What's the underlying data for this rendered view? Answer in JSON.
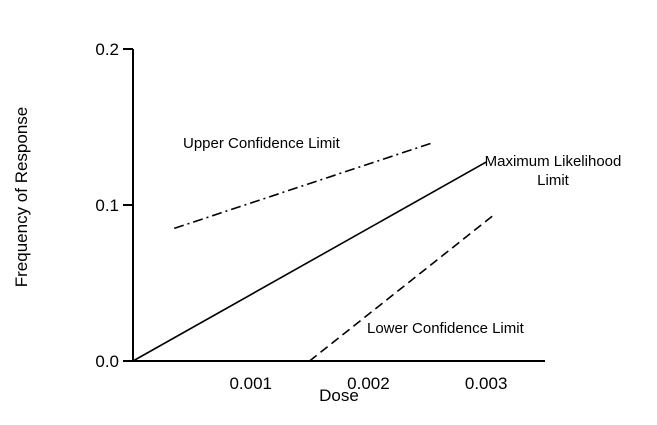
{
  "chart_data": {
    "type": "line",
    "title": "",
    "xlabel": "Dose",
    "ylabel": "Frequency of Response",
    "xlim": [
      0,
      0.0035
    ],
    "ylim": [
      0,
      0.2
    ],
    "x_ticks": [
      {
        "value": 0.001,
        "label": "0.001"
      },
      {
        "value": 0.002,
        "label": "0.002"
      },
      {
        "value": 0.003,
        "label": "0.003"
      }
    ],
    "y_ticks": [
      {
        "value": 0.0,
        "label": "0.0"
      },
      {
        "value": 0.1,
        "label": "0.1"
      },
      {
        "value": 0.2,
        "label": "0.2"
      }
    ],
    "grid": false,
    "legend": "none",
    "series": [
      {
        "name": "Upper Confidence Limit",
        "line_style": "dash-dot",
        "color": "#000000",
        "points": [
          {
            "x": 0.00035,
            "y": 0.085
          },
          {
            "x": 0.00255,
            "y": 0.14
          }
        ]
      },
      {
        "name": "Maximum Likelihood Limit",
        "line_style": "solid",
        "color": "#000000",
        "points": [
          {
            "x": 0.0,
            "y": 0.0
          },
          {
            "x": 0.003,
            "y": 0.1275
          }
        ]
      },
      {
        "name": "Lower Confidence Limit",
        "line_style": "dashed",
        "color": "#000000",
        "points": [
          {
            "x": 0.0015,
            "y": 0.0
          },
          {
            "x": 0.00308,
            "y": 0.0945
          }
        ]
      }
    ],
    "annotations": [
      {
        "id": "upper",
        "lines": [
          "Upper Confidence Limit"
        ]
      },
      {
        "id": "mle",
        "lines": [
          "Maximum Likelihood",
          "Limit"
        ]
      },
      {
        "id": "lower",
        "lines": [
          "Lower Confidence Limit"
        ]
      }
    ]
  }
}
